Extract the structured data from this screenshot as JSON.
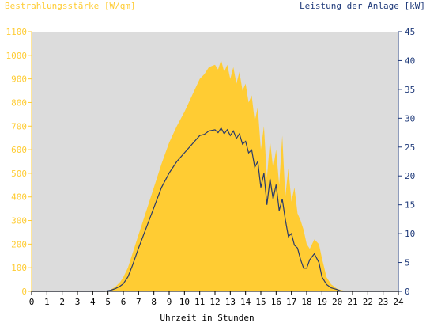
{
  "chart_data": {
    "type": "area",
    "title_left": "Bestrahlungsstärke [W/qm]",
    "title_right": "Leistung der Anlage [kW]",
    "xlabel": "Uhrzeit in Stunden",
    "xlim": [
      0,
      24
    ],
    "x_ticks": [
      "0",
      "1",
      "2",
      "3",
      "4",
      "5",
      "6",
      "7",
      "8",
      "9",
      "10",
      "11",
      "12",
      "13",
      "14",
      "15",
      "16",
      "17",
      "18",
      "19",
      "20",
      "21",
      "22",
      "23",
      "24"
    ],
    "y_left": {
      "lim": [
        0,
        1100
      ],
      "ticks": [
        "0",
        "100",
        "200",
        "300",
        "400",
        "500",
        "600",
        "700",
        "800",
        "900",
        "1000",
        "1100"
      ]
    },
    "y_right": {
      "lim": [
        0,
        45
      ],
      "ticks": [
        "0",
        "5",
        "10",
        "15",
        "20",
        "25",
        "30",
        "35",
        "40",
        "45"
      ]
    },
    "grid": false,
    "colors": {
      "plot_bg": "#dcdcdc",
      "irradiance": "#ffcc33",
      "power": "#2a3a6b",
      "left_text": "#ffcc33",
      "right_text": "#1f3a7a",
      "axis_text": "#000000"
    },
    "series": [
      {
        "name": "Bestrahlungsstärke",
        "axis": "left",
        "style": "area",
        "x": [
          0,
          4.8,
          5.2,
          5.5,
          5.8,
          6.0,
          6.3,
          6.6,
          7.0,
          7.5,
          8.0,
          8.5,
          9.0,
          9.5,
          10.0,
          10.5,
          11.0,
          11.3,
          11.6,
          12.0,
          12.2,
          12.4,
          12.6,
          12.8,
          13.0,
          13.2,
          13.4,
          13.6,
          13.8,
          14.0,
          14.2,
          14.4,
          14.6,
          14.8,
          15.0,
          15.2,
          15.4,
          15.6,
          15.8,
          16.0,
          16.2,
          16.4,
          16.6,
          16.8,
          17.0,
          17.2,
          17.4,
          17.6,
          17.8,
          18.0,
          18.2,
          18.5,
          18.8,
          19.0,
          19.3,
          19.6,
          20.0,
          20.3,
          20.6,
          24
        ],
        "values": [
          0,
          0,
          8,
          20,
          40,
          60,
          100,
          160,
          240,
          340,
          440,
          540,
          630,
          700,
          760,
          830,
          900,
          920,
          950,
          960,
          940,
          980,
          930,
          960,
          900,
          950,
          880,
          930,
          850,
          880,
          800,
          830,
          720,
          780,
          600,
          700,
          480,
          640,
          520,
          600,
          450,
          660,
          400,
          520,
          380,
          440,
          330,
          300,
          260,
          200,
          180,
          220,
          200,
          140,
          60,
          30,
          10,
          5,
          0,
          0
        ]
      },
      {
        "name": "Leistung der Anlage",
        "axis": "right",
        "style": "line",
        "x": [
          0,
          4.8,
          5.2,
          5.5,
          5.8,
          6.0,
          6.3,
          6.6,
          7.0,
          7.5,
          8.0,
          8.5,
          9.0,
          9.5,
          10.0,
          10.5,
          11.0,
          11.3,
          11.6,
          12.0,
          12.2,
          12.4,
          12.6,
          12.8,
          13.0,
          13.2,
          13.4,
          13.6,
          13.8,
          14.0,
          14.2,
          14.4,
          14.6,
          14.8,
          15.0,
          15.2,
          15.4,
          15.6,
          15.8,
          16.0,
          16.2,
          16.4,
          16.6,
          16.8,
          17.0,
          17.2,
          17.4,
          17.6,
          17.8,
          18.0,
          18.2,
          18.5,
          18.8,
          19.0,
          19.3,
          19.6,
          20.0,
          20.3,
          20.6,
          24
        ],
        "values": [
          0,
          0,
          0.2,
          0.5,
          0.9,
          1.3,
          2.5,
          4.5,
          7.5,
          11,
          14.5,
          18,
          20.5,
          22.5,
          24,
          25.5,
          27,
          27.2,
          27.8,
          28,
          27.5,
          28.3,
          27.3,
          28,
          27,
          27.8,
          26.5,
          27.3,
          25.5,
          26,
          24,
          24.5,
          21.5,
          22.5,
          18,
          20.5,
          15,
          19.5,
          16,
          18.5,
          14,
          16,
          12.5,
          9.5,
          10,
          8,
          7.5,
          5.5,
          4,
          4,
          5.5,
          6.5,
          5,
          2.5,
          1.2,
          0.6,
          0.3,
          0,
          0,
          0
        ]
      }
    ]
  }
}
